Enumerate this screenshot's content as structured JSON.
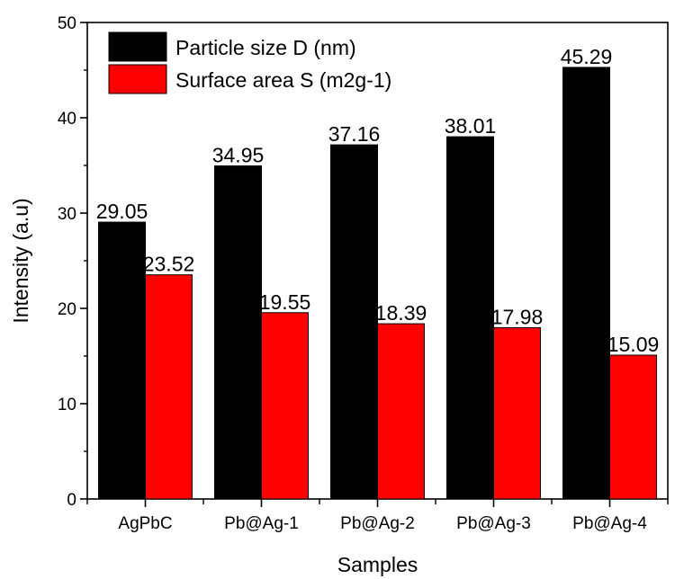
{
  "chart_data": {
    "type": "bar",
    "title": "",
    "xlabel": "Samples",
    "ylabel": "Intensity (a.u)",
    "ylim": [
      0,
      50
    ],
    "yticks": [
      0,
      10,
      20,
      30,
      40,
      50
    ],
    "categories": [
      "AgPbC",
      "Pb@Ag-1",
      "Pb@Ag-2",
      "Pb@Ag-3",
      "Pb@Ag-4"
    ],
    "series": [
      {
        "name": "Particle size D (nm)",
        "color": "#000000",
        "values": [
          29.05,
          34.95,
          37.16,
          38.01,
          45.29
        ]
      },
      {
        "name": "Surface area S (m2g-1)",
        "color": "#ff0000",
        "values": [
          23.52,
          19.55,
          18.39,
          17.98,
          15.09
        ]
      }
    ],
    "value_labels": [
      [
        "29.05",
        "34.95",
        "37.16",
        "38.01",
        "45.29"
      ],
      [
        "23.52",
        "19.55",
        "18.39",
        "17.98",
        "15.09"
      ]
    ],
    "legend_position": "top-left",
    "grid": false
  }
}
